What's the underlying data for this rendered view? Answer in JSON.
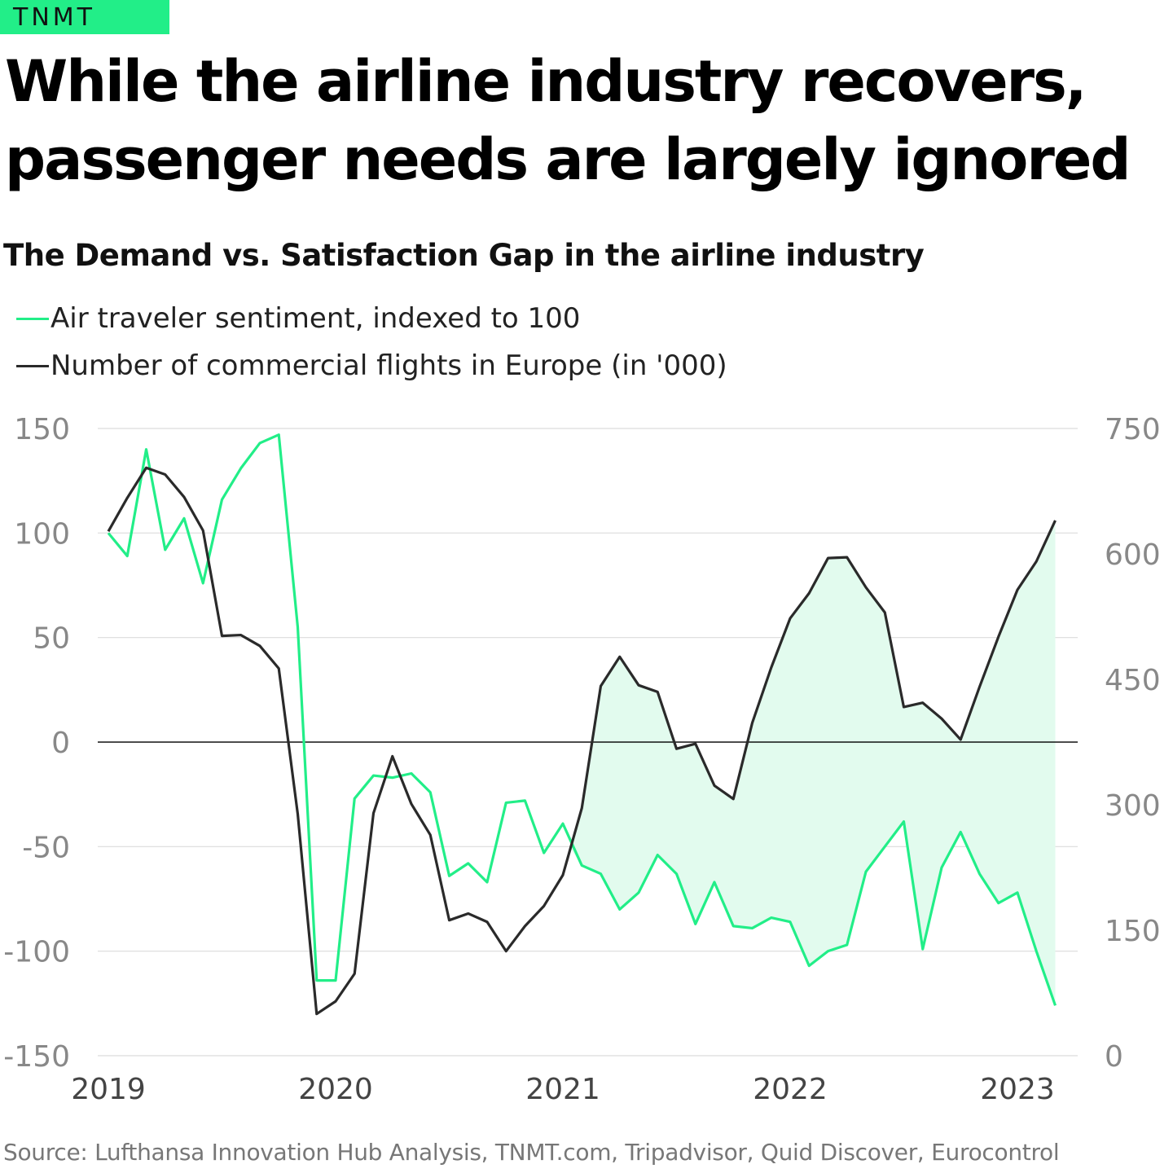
{
  "brand": {
    "logo_text": "TNMT"
  },
  "title": "While the airline industry recovers, passenger needs are largely ignored",
  "source": "Source: Lufthansa Innovation Hub Analysis, TNMT.com, Tripadvisor, Quid Discover, Eurocontrol",
  "colors": {
    "sentiment": "#22ee88",
    "flights": "#2a2a2a",
    "gap_fill": "#e2fbee",
    "brand": "#22ee88"
  },
  "chart_data": {
    "type": "line",
    "title": "The Demand vs. Satisfaction Gap in the airline industry",
    "legend_placement": "top-left",
    "grid": true,
    "x_ticks": [
      "2019",
      "2020",
      "2021",
      "2022",
      "2023"
    ],
    "y_left": {
      "ylim": [
        -150,
        150
      ],
      "ticks": [
        150,
        100,
        50,
        0,
        -50,
        -100,
        -150
      ]
    },
    "y_right": {
      "ylim": [
        0,
        750
      ],
      "ticks": [
        750,
        600,
        450,
        300,
        150,
        0
      ]
    },
    "series": [
      {
        "name": "Air traveler sentiment, indexed to 100",
        "axis": "left",
        "color": "#22ee88",
        "x": [
          "2019-01",
          "2019-02",
          "2019-03",
          "2019-04",
          "2019-05",
          "2019-06",
          "2019-07",
          "2019-08",
          "2019-09",
          "2019-10",
          "2019-11",
          "2019-12",
          "2020-01",
          "2020-02",
          "2020-03",
          "2020-04",
          "2020-05",
          "2020-06",
          "2020-07",
          "2020-08",
          "2020-09",
          "2020-10",
          "2020-11",
          "2020-12",
          "2021-01",
          "2021-02",
          "2021-03",
          "2021-04",
          "2021-05",
          "2021-06",
          "2021-07",
          "2021-08",
          "2021-09",
          "2021-10",
          "2021-11",
          "2021-12",
          "2022-01",
          "2022-02",
          "2022-03",
          "2022-04",
          "2022-05",
          "2022-06",
          "2022-07",
          "2022-08",
          "2022-09",
          "2022-10",
          "2022-11",
          "2022-12",
          "2023-01",
          "2023-02",
          "2023-03"
        ],
        "values": [
          100,
          89,
          140,
          92,
          107,
          76,
          116,
          131,
          143,
          147,
          55,
          -114,
          -114,
          -27,
          -16,
          -17,
          -15,
          -24,
          -64,
          -58,
          -67,
          -29,
          -28,
          -53,
          -39,
          -59,
          -63,
          -80,
          -72,
          -54,
          -63,
          -87,
          -67,
          -88,
          -89,
          -84,
          -86,
          -107,
          -100,
          -97,
          -62,
          -50,
          -38,
          -99,
          -60,
          -43,
          -63,
          -77,
          -72,
          -100,
          -126
        ]
      },
      {
        "name": "Number of commercial flights in Europe (in '000)",
        "axis": "right",
        "color": "#2a2a2a",
        "x": [
          "2019-01",
          "2019-02",
          "2019-03",
          "2019-04",
          "2019-05",
          "2019-06",
          "2019-07",
          "2019-08",
          "2019-09",
          "2019-10",
          "2019-11",
          "2019-12",
          "2020-01",
          "2020-02",
          "2020-03",
          "2020-04",
          "2020-05",
          "2020-06",
          "2020-07",
          "2020-08",
          "2020-09",
          "2020-10",
          "2020-11",
          "2020-12",
          "2021-01",
          "2021-02",
          "2021-03",
          "2021-04",
          "2021-05",
          "2021-06",
          "2021-07",
          "2021-08",
          "2021-09",
          "2021-10",
          "2021-11",
          "2021-12",
          "2022-01",
          "2022-02",
          "2022-03",
          "2022-04",
          "2022-05",
          "2022-06",
          "2022-07",
          "2022-08",
          "2022-09",
          "2022-10",
          "2022-11",
          "2022-12",
          "2023-01",
          "2023-02",
          "2023-03"
        ],
        "values": [
          627,
          667,
          703,
          695,
          668,
          628,
          502,
          503,
          490,
          463,
          289,
          50,
          65,
          98,
          290,
          358,
          301,
          264,
          162,
          170,
          160,
          125,
          155,
          179,
          216,
          296,
          442,
          477,
          443,
          435,
          367,
          373,
          323,
          307,
          398,
          464,
          523,
          553,
          595,
          596,
          560,
          530,
          417,
          422,
          403,
          378,
          441,
          501,
          557,
          591,
          640
        ]
      }
    ]
  }
}
